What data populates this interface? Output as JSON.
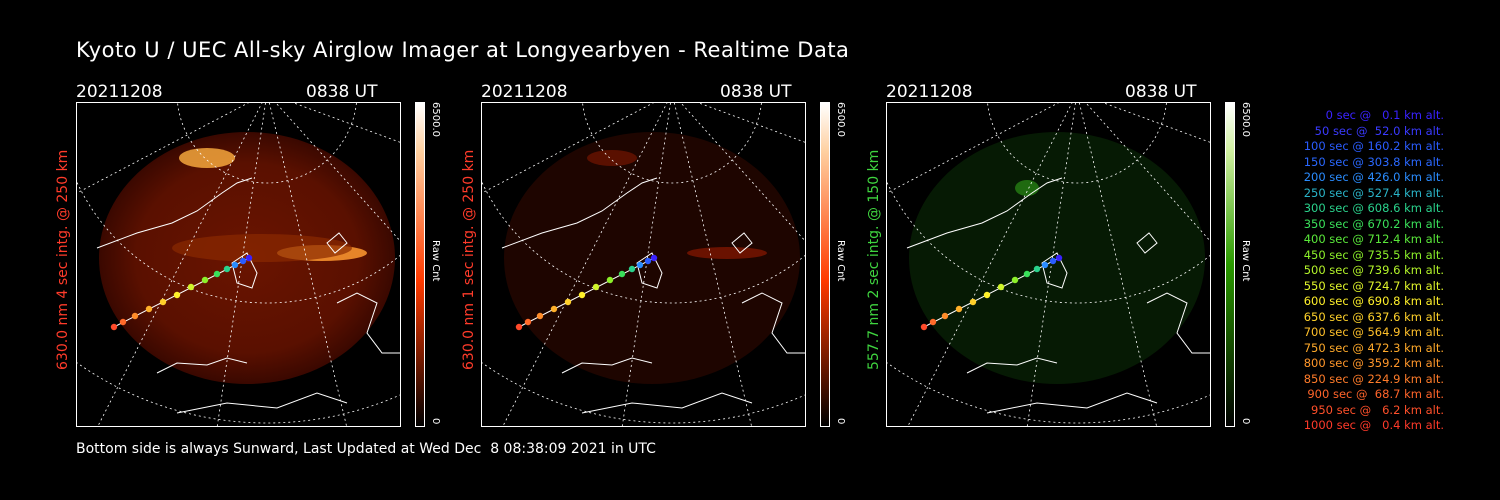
{
  "title": "Kyoto U / UEC All-sky Airglow Imager at Longyearbyen - Realtime Data",
  "footer": "Bottom side is always Sunward, Last Updated at Wed Dec  8 08:38:09 2021 in UTC",
  "panels": [
    {
      "date": "20211208",
      "time": "0838 UT",
      "label": "630.0 nm 4 sec intg. @ 250 km",
      "label_color": "#ff3b2a",
      "cbar_max": "6500.0",
      "cbar_min": "0",
      "cbar_unit": "Raw Cnt",
      "cbar_color": "#ff3a00"
    },
    {
      "date": "20211208",
      "time": "0838 UT",
      "label": "630.0 nm 1 sec intg. @ 250 km",
      "label_color": "#ff3b2a",
      "cbar_max": "6500.0",
      "cbar_min": "0",
      "cbar_unit": "Raw Cnt",
      "cbar_color": "#ff3a00"
    },
    {
      "date": "20211208",
      "time": "0838 UT",
      "label": "557.7 nm 2 sec intg. @ 150 km",
      "label_color": "#3fd43f",
      "cbar_max": "6500.0",
      "cbar_min": "0",
      "cbar_unit": "Raw Cnt",
      "cbar_color": "#2a9a00"
    }
  ],
  "legend": [
    {
      "text": "0 sec @   0.1 km alt.",
      "color": "#3a22ff"
    },
    {
      "text": "50 sec @  52.0 km alt.",
      "color": "#3a3aff"
    },
    {
      "text": "100 sec @ 160.2 km alt.",
      "color": "#2a5cff"
    },
    {
      "text": "150 sec @ 303.8 km alt.",
      "color": "#2a68ff"
    },
    {
      "text": "200 sec @ 426.0 km alt.",
      "color": "#2a8cff"
    },
    {
      "text": "250 sec @ 527.4 km alt.",
      "color": "#2ab4c8"
    },
    {
      "text": "300 sec @ 608.6 km alt.",
      "color": "#2ad28c"
    },
    {
      "text": "350 sec @ 670.2 km alt.",
      "color": "#3ae05a"
    },
    {
      "text": "400 sec @ 712.4 km alt.",
      "color": "#5ae83a"
    },
    {
      "text": "450 sec @ 735.5 km alt.",
      "color": "#8cf02a"
    },
    {
      "text": "500 sec @ 739.6 km alt.",
      "color": "#b4f52a"
    },
    {
      "text": "550 sec @ 724.7 km alt.",
      "color": "#e0f52a"
    },
    {
      "text": "600 sec @ 690.8 km alt.",
      "color": "#fff02a"
    },
    {
      "text": "650 sec @ 637.6 km alt.",
      "color": "#ffd22a"
    },
    {
      "text": "700 sec @ 564.9 km alt.",
      "color": "#ffc02a"
    },
    {
      "text": "750 sec @ 472.3 km alt.",
      "color": "#ffaa2a"
    },
    {
      "text": "800 sec @ 359.2 km alt.",
      "color": "#ff962a"
    },
    {
      "text": "850 sec @ 224.9 km alt.",
      "color": "#ff7c2a"
    },
    {
      "text": "900 sec @  68.7 km alt.",
      "color": "#ff642a"
    },
    {
      "text": "950 sec @   6.2 km alt.",
      "color": "#ff502a"
    },
    {
      "text": "1000 sec @   0.4 km alt.",
      "color": "#ff3a2a"
    }
  ]
}
